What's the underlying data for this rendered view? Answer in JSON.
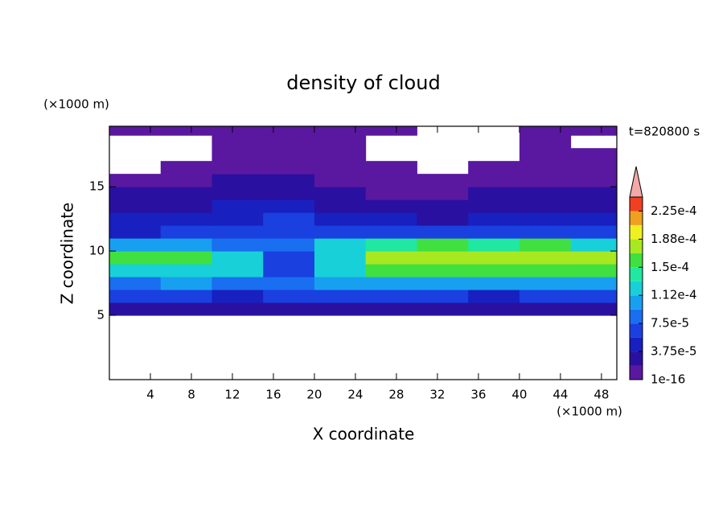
{
  "chart_data": {
    "type": "contour",
    "title": "density of cloud",
    "x_label": "X coordinate",
    "y_label": "Z coordinate",
    "x_unit": "(×1000 m)",
    "y_unit": "(×1000 m)",
    "time_label": "t=820800 s",
    "xlim": [
      0,
      49.5
    ],
    "ylim": [
      0,
      19.7
    ],
    "xticks": [
      4,
      8,
      12,
      16,
      20,
      24,
      28,
      32,
      36,
      40,
      44,
      48
    ],
    "yticks": [
      5,
      10,
      15
    ],
    "x": [
      2.5,
      7.5,
      12.5,
      17.5,
      22.5,
      27.5,
      32.5,
      37.5,
      42.5,
      47.5
    ],
    "z": [
      0.5,
      1.5,
      2.5,
      3.5,
      4.5,
      5.5,
      6.5,
      7.5,
      8.5,
      9.5,
      10.5,
      11.5,
      12.5,
      13.5,
      14.5,
      15.5,
      16.5,
      17.5,
      18.5,
      19.5
    ],
    "values": [
      [
        null,
        null,
        null,
        null,
        null,
        null,
        null,
        null,
        null,
        null
      ],
      [
        null,
        null,
        null,
        null,
        null,
        null,
        null,
        null,
        null,
        null
      ],
      [
        null,
        null,
        null,
        null,
        null,
        null,
        null,
        null,
        null,
        null
      ],
      [
        null,
        null,
        null,
        null,
        null,
        null,
        null,
        null,
        null,
        null
      ],
      [
        null,
        null,
        null,
        null,
        null,
        null,
        null,
        null,
        null,
        null
      ],
      [
        3e-05,
        3e-05,
        2e-05,
        3e-05,
        3e-05,
        3e-05,
        3e-05,
        3e-05,
        3e-05,
        3e-05
      ],
      [
        6e-05,
        6e-05,
        5e-05,
        6e-05,
        6e-05,
        6e-05,
        6e-05,
        5e-05,
        6e-05,
        6e-05
      ],
      [
        9e-05,
        0.0001,
        9e-05,
        8e-05,
        0.0001,
        0.00011,
        0.00011,
        0.0001,
        0.00011,
        0.00011
      ],
      [
        0.00012,
        0.00013,
        0.00012,
        6e-05,
        0.00012,
        0.00015,
        0.00016,
        0.00015,
        0.00015,
        0.00015
      ],
      [
        0.00016,
        0.00015,
        0.00012,
        7e-05,
        0.00013,
        0.00017,
        0.00018,
        0.00017,
        0.00018,
        0.00017
      ],
      [
        0.0001,
        0.00011,
        9e-05,
        8e-05,
        0.00012,
        0.00014,
        0.00015,
        0.00014,
        0.00015,
        0.00013
      ],
      [
        5e-05,
        6e-05,
        7e-05,
        7e-05,
        6e-05,
        6e-05,
        6e-05,
        6e-05,
        6e-05,
        6e-05
      ],
      [
        4e-05,
        4e-05,
        5e-05,
        6e-05,
        4e-05,
        4e-05,
        3e-05,
        4e-05,
        4e-05,
        4e-05
      ],
      [
        3e-05,
        3e-05,
        4e-05,
        4e-05,
        3e-05,
        2e-05,
        2e-05,
        3e-05,
        3e-05,
        3e-05
      ],
      [
        2e-05,
        2e-05,
        2e-05,
        3e-05,
        2e-05,
        1e-05,
        1e-05,
        2e-05,
        2e-05,
        2e-05
      ],
      [
        1e-05,
        1e-05,
        2e-05,
        2e-05,
        1e-05,
        1e-05,
        1e-05,
        1e-05,
        1e-05,
        1e-05
      ],
      [
        null,
        1e-05,
        1e-05,
        1e-05,
        1e-05,
        1e-05,
        null,
        1e-05,
        1e-05,
        1e-05
      ],
      [
        null,
        null,
        1e-05,
        1e-05,
        1e-05,
        null,
        null,
        null,
        1e-05,
        1e-05
      ],
      [
        null,
        null,
        1e-05,
        1e-05,
        1e-05,
        null,
        null,
        null,
        1e-05,
        null
      ],
      [
        1e-05,
        1e-05,
        1e-05,
        1e-05,
        1e-05,
        1e-05,
        null,
        null,
        1e-05,
        1e-05
      ]
    ],
    "colorbar": {
      "levels": [
        1e-16,
        1.875e-05,
        3.75e-05,
        5.625e-05,
        7.5e-05,
        9.375e-05,
        0.0001125,
        0.00013125,
        0.00015,
        0.00016875,
        0.0001875,
        0.00020625,
        0.000225,
        0.00024375
      ],
      "colors": [
        "#5a18a0",
        "#2a10a0",
        "#1820c0",
        "#1a40e0",
        "#1a6ef0",
        "#18a0f0",
        "#18d0d8",
        "#20e8a0",
        "#40e040",
        "#a8e820",
        "#f0f020",
        "#f0a020",
        "#f04020"
      ],
      "extend_color": "#f4a8a8",
      "ticks": [
        {
          "value": 1e-16,
          "label": "1e-16"
        },
        {
          "value": 3.75e-05,
          "label": "3.75e-5"
        },
        {
          "value": 7.5e-05,
          "label": "7.5e-5"
        },
        {
          "value": 0.0001125,
          "label": "1.12e-4"
        },
        {
          "value": 0.00015,
          "label": "1.5e-4"
        },
        {
          "value": 0.0001875,
          "label": "1.88e-4"
        },
        {
          "value": 0.000225,
          "label": "2.25e-4"
        }
      ]
    }
  }
}
